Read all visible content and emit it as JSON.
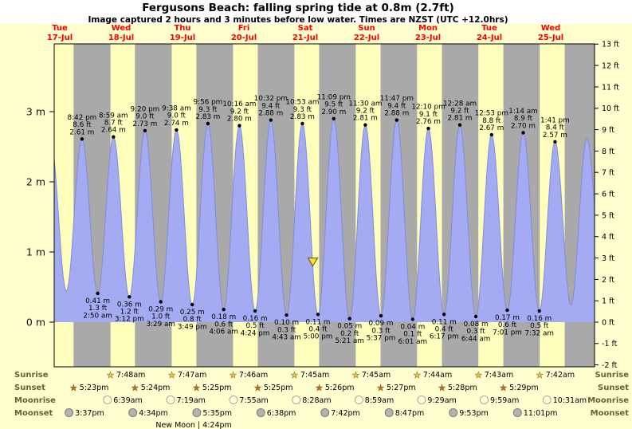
{
  "title": "Fergusons Beach: falling  spring tide at 0.8m (2.7ft)",
  "subtitle": "Image captured 2 hours and 3 minutes before low water. Times are NZST (UTC +12.0hrs)",
  "chart_data": {
    "type": "area",
    "title": "Fergusons Beach: falling  spring tide at 0.8m (2.7ft)",
    "y_left": {
      "unit": "m",
      "ticks": [
        0,
        1,
        2,
        3
      ]
    },
    "y_right": {
      "unit": "ft",
      "min": -2,
      "max": 13
    },
    "days": [
      {
        "dow": "Tue",
        "date": "17-Jul"
      },
      {
        "dow": "Wed",
        "date": "18-Jul"
      },
      {
        "dow": "Thu",
        "date": "19-Jul"
      },
      {
        "dow": "Fri",
        "date": "20-Jul"
      },
      {
        "dow": "Sat",
        "date": "21-Jul"
      },
      {
        "dow": "Sun",
        "date": "22-Jul"
      },
      {
        "dow": "Mon",
        "date": "23-Jul"
      },
      {
        "dow": "Tue",
        "date": "24-Jul"
      },
      {
        "dow": "Wed",
        "date": "25-Jul"
      }
    ],
    "tide_events": [
      {
        "day": 0,
        "t24": "08:25",
        "type": "high",
        "height_m": 2.58,
        "edge": true
      },
      {
        "day": 0,
        "t24": "14:35",
        "type": "low",
        "height_m": 0.45,
        "edge": true
      },
      {
        "day": 0,
        "t24": "20:42",
        "type": "high",
        "height_m": 2.61,
        "labels": [
          "8:42 pm",
          "8.6 ft",
          "2.61 m"
        ]
      },
      {
        "day": 1,
        "t24": "02:50",
        "type": "low",
        "height_m": 0.41,
        "labels": [
          "0.41 m",
          "1.3 ft",
          "2:50 am"
        ]
      },
      {
        "day": 1,
        "t24": "08:59",
        "type": "high",
        "height_m": 2.64,
        "labels": [
          "8:59 am",
          "8.7 ft",
          "2.64 m"
        ]
      },
      {
        "day": 1,
        "t24": "15:12",
        "type": "low",
        "height_m": 0.36,
        "labels": [
          "0.36 m",
          "1.2 ft",
          "3:12 pm"
        ]
      },
      {
        "day": 1,
        "t24": "21:20",
        "type": "high",
        "height_m": 2.73,
        "labels": [
          "9:20 pm",
          "9.0 ft",
          "2.73 m"
        ]
      },
      {
        "day": 2,
        "t24": "03:29",
        "type": "low",
        "height_m": 0.29,
        "labels": [
          "0.29 m",
          "1.0 ft",
          "3:29 am"
        ]
      },
      {
        "day": 2,
        "t24": "09:38",
        "type": "high",
        "height_m": 2.74,
        "labels": [
          "9:38 am",
          "9.0 ft",
          "2.74 m"
        ]
      },
      {
        "day": 2,
        "t24": "15:49",
        "type": "low",
        "height_m": 0.25,
        "labels": [
          "0.25 m",
          "0.8 ft",
          "3:49 pm"
        ]
      },
      {
        "day": 2,
        "t24": "21:56",
        "type": "high",
        "height_m": 2.83,
        "labels": [
          "9:56 pm",
          "9.3 ft",
          "2.83 m"
        ]
      },
      {
        "day": 3,
        "t24": "04:06",
        "type": "low",
        "height_m": 0.18,
        "labels": [
          "0.18 m",
          "0.6 ft",
          "4:06 am"
        ]
      },
      {
        "day": 3,
        "t24": "10:16",
        "type": "high",
        "height_m": 2.8,
        "labels": [
          "10:16 am",
          "9.2 ft",
          "2.80 m"
        ]
      },
      {
        "day": 3,
        "t24": "16:24",
        "type": "low",
        "height_m": 0.16,
        "labels": [
          "0.16 m",
          "0.5 ft",
          "4:24 pm"
        ]
      },
      {
        "day": 3,
        "t24": "22:32",
        "type": "high",
        "height_m": 2.88,
        "labels": [
          "10:32 pm",
          "9.4 ft",
          "2.88 m"
        ]
      },
      {
        "day": 4,
        "t24": "04:43",
        "type": "low",
        "height_m": 0.1,
        "labels": [
          "0.10 m",
          "0.3 ft",
          "4:43 am"
        ]
      },
      {
        "day": 4,
        "t24": "10:53",
        "type": "high",
        "height_m": 2.83,
        "labels": [
          "10:53 am",
          "9.3 ft",
          "2.83 m"
        ]
      },
      {
        "day": 4,
        "t24": "17:00",
        "type": "low",
        "height_m": 0.11,
        "labels": [
          "0.11 m",
          "0.4 ft",
          "5:00 pm"
        ]
      },
      {
        "day": 4,
        "t24": "23:09",
        "type": "high",
        "height_m": 2.9,
        "labels": [
          "11:09 pm",
          "9.5 ft",
          "2.90 m"
        ]
      },
      {
        "day": 5,
        "t24": "05:21",
        "type": "low",
        "height_m": 0.05,
        "labels": [
          "0.05 m",
          "0.2 ft",
          "5:21 am"
        ]
      },
      {
        "day": 5,
        "t24": "11:30",
        "type": "high",
        "height_m": 2.81,
        "labels": [
          "11:30 am",
          "9.2 ft",
          "2.81 m"
        ]
      },
      {
        "day": 5,
        "t24": "17:37",
        "type": "low",
        "height_m": 0.09,
        "labels": [
          "0.09 m",
          "0.3 ft",
          "5:37 pm"
        ]
      },
      {
        "day": 5,
        "t24": "23:47",
        "type": "high",
        "height_m": 2.88,
        "labels": [
          "11:47 pm",
          "9.4 ft",
          "2.88 m"
        ]
      },
      {
        "day": 6,
        "t24": "06:01",
        "type": "low",
        "height_m": 0.04,
        "labels": [
          "0.04 m",
          "0.1 ft",
          "6:01 am"
        ]
      },
      {
        "day": 6,
        "t24": "12:10",
        "type": "high",
        "height_m": 2.76,
        "labels": [
          "12:10 pm",
          "9.1 ft",
          "2.76 m"
        ]
      },
      {
        "day": 6,
        "t24": "18:17",
        "type": "low",
        "height_m": 0.11,
        "labels": [
          "0.11 m",
          "0.4 ft",
          "6:17 pm"
        ]
      },
      {
        "day": 7,
        "t24": "00:28",
        "type": "high",
        "height_m": 2.81,
        "labels": [
          "12:28 am",
          "9.2 ft",
          "2.81 m"
        ]
      },
      {
        "day": 7,
        "t24": "06:44",
        "type": "low",
        "height_m": 0.08,
        "labels": [
          "0.08 m",
          "0.3 ft",
          "6:44 am"
        ]
      },
      {
        "day": 7,
        "t24": "12:53",
        "type": "high",
        "height_m": 2.67,
        "labels": [
          "12:53 pm",
          "8.8 ft",
          "2.67 m"
        ]
      },
      {
        "day": 7,
        "t24": "19:01",
        "type": "low",
        "height_m": 0.17,
        "labels": [
          "0.17 m",
          "0.6 ft",
          "7:01 pm"
        ]
      },
      {
        "day": 8,
        "t24": "01:14",
        "type": "high",
        "height_m": 2.7,
        "labels": [
          "1:14 am",
          "8.9 ft",
          "2.70 m"
        ]
      },
      {
        "day": 8,
        "t24": "07:32",
        "type": "low",
        "height_m": 0.16,
        "labels": [
          "0.16 m",
          "0.5 ft",
          "7:32 am"
        ]
      },
      {
        "day": 8,
        "t24": "13:41",
        "type": "high",
        "height_m": 2.57,
        "labels": [
          "1:41 pm",
          "8.4 ft",
          "2.57 m"
        ]
      },
      {
        "day": 8,
        "t24": "19:55",
        "type": "low",
        "height_m": 0.25,
        "edge": true
      },
      {
        "day": 9,
        "t24": "02:10",
        "type": "high",
        "height_m": 2.62,
        "edge": true
      },
      {
        "day": 9,
        "t24": "08:40",
        "type": "low",
        "height_m": 0.3,
        "edge": true
      }
    ],
    "current_marker": {
      "day": 4,
      "t24": "14:57",
      "height_m": 0.8
    },
    "sun_moon_rows": [
      {
        "key": "sunrise",
        "label": "Sunrise",
        "icon": "star-yellow",
        "events": [
          {
            "day": 1,
            "t24": "07:48",
            "time_label": "7:48am"
          },
          {
            "day": 2,
            "t24": "07:47",
            "time_label": "7:47am"
          },
          {
            "day": 3,
            "t24": "07:46",
            "time_label": "7:46am"
          },
          {
            "day": 4,
            "t24": "07:45",
            "time_label": "7:45am"
          },
          {
            "day": 5,
            "t24": "07:45",
            "time_label": "7:45am"
          },
          {
            "day": 6,
            "t24": "07:44",
            "time_label": "7:44am"
          },
          {
            "day": 7,
            "t24": "07:43",
            "time_label": "7:43am"
          },
          {
            "day": 8,
            "t24": "07:42",
            "time_label": "7:42am"
          }
        ]
      },
      {
        "key": "sunset",
        "label": "Sunset",
        "icon": "star-orange",
        "events": [
          {
            "day": 0,
            "t24": "17:23",
            "time_label": "5:23pm"
          },
          {
            "day": 1,
            "t24": "17:24",
            "time_label": "5:24pm"
          },
          {
            "day": 2,
            "t24": "17:25",
            "time_label": "5:25pm"
          },
          {
            "day": 3,
            "t24": "17:25",
            "time_label": "5:25pm"
          },
          {
            "day": 4,
            "t24": "17:26",
            "time_label": "5:26pm"
          },
          {
            "day": 5,
            "t24": "17:27",
            "time_label": "5:27pm"
          },
          {
            "day": 6,
            "t24": "17:28",
            "time_label": "5:28pm"
          },
          {
            "day": 7,
            "t24": "17:29",
            "time_label": "5:29pm"
          }
        ]
      },
      {
        "key": "moonrise",
        "label": "Moonrise",
        "icon": "moon-light",
        "events": [
          {
            "day": 1,
            "t24": "06:39",
            "time_label": "6:39am"
          },
          {
            "day": 2,
            "t24": "07:19",
            "time_label": "7:19am"
          },
          {
            "day": 3,
            "t24": "07:55",
            "time_label": "7:55am"
          },
          {
            "day": 4,
            "t24": "08:28",
            "time_label": "8:28am"
          },
          {
            "day": 5,
            "t24": "08:59",
            "time_label": "8:59am"
          },
          {
            "day": 6,
            "t24": "09:29",
            "time_label": "9:29am"
          },
          {
            "day": 7,
            "t24": "09:59",
            "time_label": "9:59am"
          },
          {
            "day": 8,
            "t24": "10:31",
            "time_label": "10:31am"
          }
        ]
      },
      {
        "key": "moonset",
        "label": "Moonset",
        "icon": "moon-dark",
        "events": [
          {
            "day": 0,
            "t24": "15:37",
            "time_label": "3:37pm"
          },
          {
            "day": 1,
            "t24": "16:34",
            "time_label": "4:34pm"
          },
          {
            "day": 2,
            "t24": "17:35",
            "time_label": "5:35pm"
          },
          {
            "day": 3,
            "t24": "18:38",
            "time_label": "6:38pm"
          },
          {
            "day": 4,
            "t24": "19:42",
            "time_label": "7:42pm"
          },
          {
            "day": 5,
            "t24": "20:47",
            "time_label": "8:47pm"
          },
          {
            "day": 6,
            "t24": "21:53",
            "time_label": "9:53pm"
          },
          {
            "day": 7,
            "t24": "23:01",
            "time_label": "11:01pm"
          }
        ]
      }
    ],
    "moon_phase_note": {
      "text": "New Moon | 4:24pm",
      "day": 2,
      "t24": "16:24"
    },
    "colors": {
      "page_bg": "#ffffd0",
      "day_band": "#ffffbd",
      "night_band": "#a9a9a9",
      "tide_fill": "#a4abf2",
      "tide_stroke": "#828add",
      "day_label": "#ff0000",
      "marker": "#f2e23c",
      "row_label": "#6f5f2a",
      "star_yellow": "#e8c63d",
      "star_orange": "#c46a1a",
      "moon_light": "#ffffdf",
      "moon_dark": "#b3b3b3"
    }
  }
}
